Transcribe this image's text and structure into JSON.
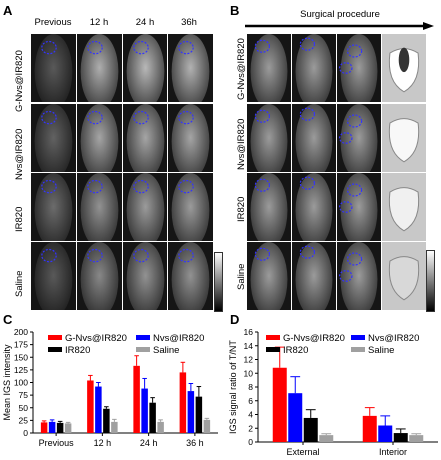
{
  "figure": {
    "panel_a": {
      "letter": "A",
      "columns": [
        "Previous",
        "12 h",
        "24 h",
        "36h"
      ],
      "rows": [
        "G-Nvs@IR820",
        "Nvs@IR820",
        "IR820",
        "Saline"
      ]
    },
    "panel_b": {
      "letter": "B",
      "title": "Surgical procedure",
      "rows": [
        "G-Nvs@IR820",
        "Nvs@IR820",
        "IR820",
        "Saline"
      ]
    },
    "panel_c": {
      "letter": "C"
    },
    "panel_d": {
      "letter": "D"
    }
  },
  "colors": {
    "red": "#ff0000",
    "blue": "#0000ff",
    "black": "#000000",
    "gray": "#a0a0a0",
    "circle": "#3333ff"
  },
  "chart_data": [
    {
      "type": "bar",
      "panel": "C",
      "ylabel": "Mean IGS intensity",
      "categories": [
        "Previous",
        "12 h",
        "24 h",
        "36 h"
      ],
      "ylim": [
        0,
        200
      ],
      "yticks": [
        0,
        25,
        50,
        75,
        100,
        125,
        150,
        175,
        200
      ],
      "legend": "top",
      "series": [
        {
          "name": "G-Nvs@IR820",
          "color": "#ff0000",
          "values": [
            21,
            104,
            133,
            120
          ],
          "errors": [
            3,
            10,
            20,
            20
          ]
        },
        {
          "name": "Nvs@IR820",
          "color": "#0000ff",
          "values": [
            22,
            92,
            88,
            83
          ],
          "errors": [
            4,
            8,
            20,
            15
          ]
        },
        {
          "name": "IR820",
          "color": "#000000",
          "values": [
            20,
            48,
            60,
            72
          ],
          "errors": [
            3,
            4,
            10,
            20
          ]
        },
        {
          "name": "Saline",
          "color": "#a0a0a0",
          "values": [
            19,
            22,
            22,
            26
          ],
          "errors": [
            2,
            5,
            4,
            3
          ]
        }
      ]
    },
    {
      "type": "bar",
      "panel": "D",
      "ylabel": "IGS signal ratio of T/NT",
      "categories": [
        "External",
        "Interior"
      ],
      "ylim": [
        0,
        16
      ],
      "yticks": [
        0,
        2,
        4,
        6,
        8,
        10,
        12,
        14,
        16
      ],
      "legend": "top",
      "series": [
        {
          "name": "G-Nvs@IR820",
          "color": "#ff0000",
          "values": [
            10.8,
            3.8
          ],
          "errors": [
            3.0,
            1.2
          ]
        },
        {
          "name": "Nvs@IR820",
          "color": "#0000ff",
          "values": [
            7.1,
            2.4
          ],
          "errors": [
            2.4,
            1.4
          ]
        },
        {
          "name": "IR820",
          "color": "#000000",
          "values": [
            3.5,
            1.3
          ],
          "errors": [
            1.2,
            0.6
          ]
        },
        {
          "name": "Saline",
          "color": "#a0a0a0",
          "values": [
            1.0,
            1.0
          ],
          "errors": [
            0.2,
            0.2
          ]
        }
      ]
    }
  ]
}
